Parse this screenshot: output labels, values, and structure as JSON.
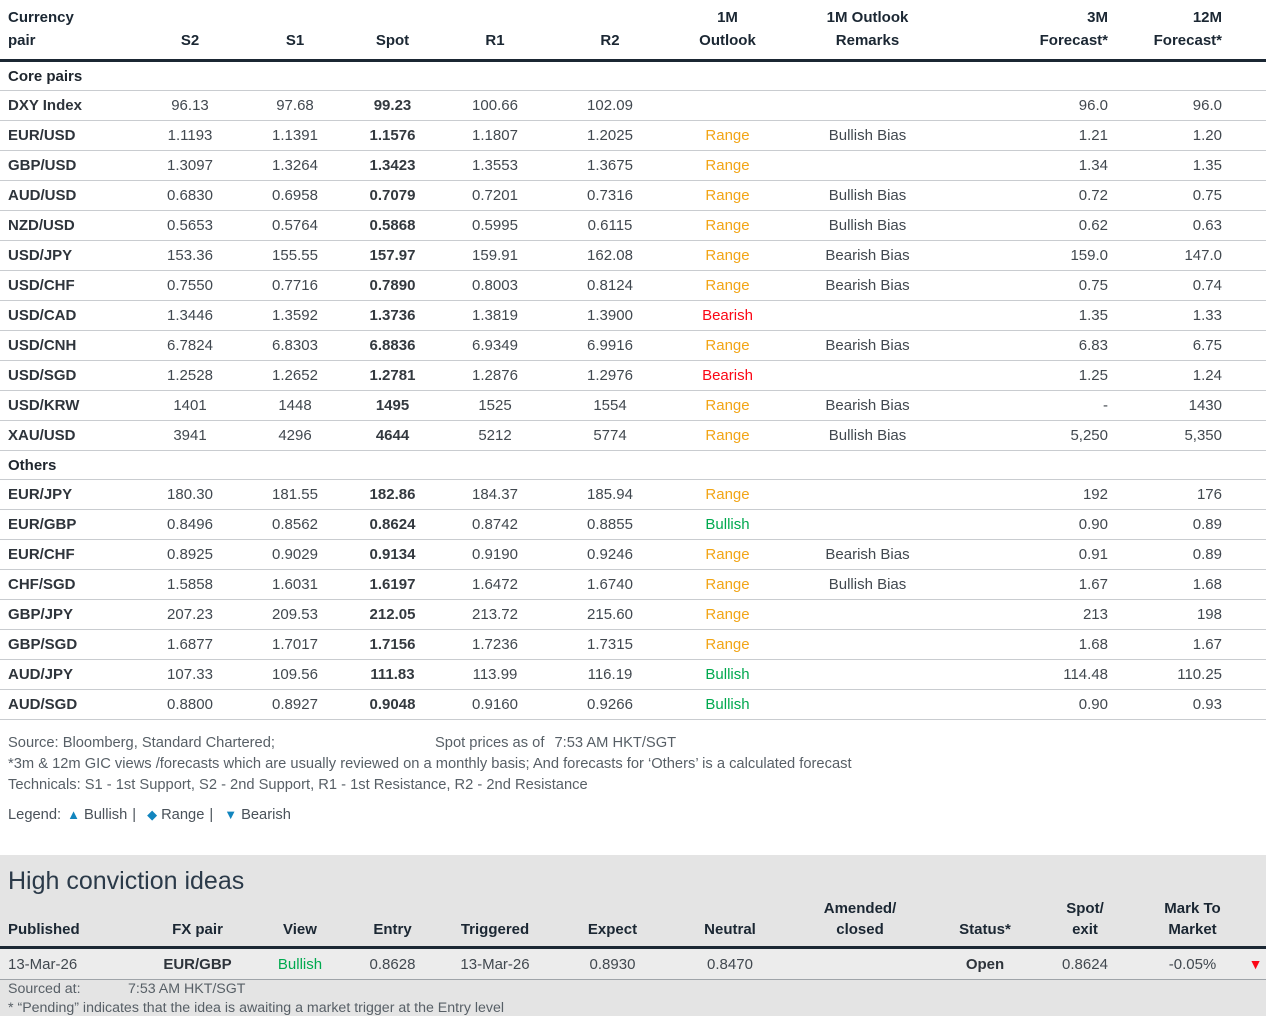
{
  "colors": {
    "range": "#f2a516",
    "bearish": "#fb0716",
    "bullish": "#00a94f",
    "legend_icon": "#1285be",
    "header_navy": "#1b2733"
  },
  "fx_table": {
    "columns": [
      {
        "key": "pair",
        "l1": "Currency",
        "l2": "pair"
      },
      {
        "key": "s2",
        "l1": "",
        "l2": "S2"
      },
      {
        "key": "s1",
        "l1": "",
        "l2": "S1"
      },
      {
        "key": "spot",
        "l1": "",
        "l2": "Spot"
      },
      {
        "key": "r1",
        "l1": "",
        "l2": "R1"
      },
      {
        "key": "r2",
        "l1": "",
        "l2": "R2"
      },
      {
        "key": "outlook",
        "l1": "1M",
        "l2": "Outlook"
      },
      {
        "key": "remarks",
        "l1": "1M Outlook",
        "l2": "Remarks"
      },
      {
        "key": "f3m",
        "l1": "3M",
        "l2": "Forecast*"
      },
      {
        "key": "f12m",
        "l1": "12M",
        "l2": "Forecast*"
      }
    ],
    "sections": [
      {
        "title": "Core pairs",
        "rows": [
          {
            "pair": "DXY Index",
            "s2": "96.13",
            "s1": "97.68",
            "spot": "99.23",
            "r1": "100.66",
            "r2": "102.09",
            "outlook": "",
            "remarks": "",
            "f3m": "96.0",
            "f12m": "96.0"
          },
          {
            "pair": "EUR/USD",
            "s2": "1.1193",
            "s1": "1.1391",
            "spot": "1.1576",
            "r1": "1.1807",
            "r2": "1.2025",
            "outlook": "Range",
            "remarks": "Bullish Bias",
            "f3m": "1.21",
            "f12m": "1.20"
          },
          {
            "pair": "GBP/USD",
            "s2": "1.3097",
            "s1": "1.3264",
            "spot": "1.3423",
            "r1": "1.3553",
            "r2": "1.3675",
            "outlook": "Range",
            "remarks": "",
            "f3m": "1.34",
            "f12m": "1.35"
          },
          {
            "pair": "AUD/USD",
            "s2": "0.6830",
            "s1": "0.6958",
            "spot": "0.7079",
            "r1": "0.7201",
            "r2": "0.7316",
            "outlook": "Range",
            "remarks": "Bullish Bias",
            "f3m": "0.72",
            "f12m": "0.75"
          },
          {
            "pair": "NZD/USD",
            "s2": "0.5653",
            "s1": "0.5764",
            "spot": "0.5868",
            "r1": "0.5995",
            "r2": "0.6115",
            "outlook": "Range",
            "remarks": "Bullish Bias",
            "f3m": "0.62",
            "f12m": "0.63"
          },
          {
            "pair": "USD/JPY",
            "s2": "153.36",
            "s1": "155.55",
            "spot": "157.97",
            "r1": "159.91",
            "r2": "162.08",
            "outlook": "Range",
            "remarks": "Bearish Bias",
            "f3m": "159.0",
            "f12m": "147.0"
          },
          {
            "pair": "USD/CHF",
            "s2": "0.7550",
            "s1": "0.7716",
            "spot": "0.7890",
            "r1": "0.8003",
            "r2": "0.8124",
            "outlook": "Range",
            "remarks": "Bearish Bias",
            "f3m": "0.75",
            "f12m": "0.74"
          },
          {
            "pair": "USD/CAD",
            "s2": "1.3446",
            "s1": "1.3592",
            "spot": "1.3736",
            "r1": "1.3819",
            "r2": "1.3900",
            "outlook": "Bearish",
            "remarks": "",
            "f3m": "1.35",
            "f12m": "1.33"
          },
          {
            "pair": "USD/CNH",
            "s2": "6.7824",
            "s1": "6.8303",
            "spot": "6.8836",
            "r1": "6.9349",
            "r2": "6.9916",
            "outlook": "Range",
            "remarks": "Bearish Bias",
            "f3m": "6.83",
            "f12m": "6.75"
          },
          {
            "pair": "USD/SGD",
            "s2": "1.2528",
            "s1": "1.2652",
            "spot": "1.2781",
            "r1": "1.2876",
            "r2": "1.2976",
            "outlook": "Bearish",
            "remarks": "",
            "f3m": "1.25",
            "f12m": "1.24"
          },
          {
            "pair": "USD/KRW",
            "s2": "1401",
            "s1": "1448",
            "spot": "1495",
            "r1": "1525",
            "r2": "1554",
            "outlook": "Range",
            "remarks": "Bearish Bias",
            "f3m": "-",
            "f12m": "1430"
          },
          {
            "pair": "XAU/USD",
            "s2": "3941",
            "s1": "4296",
            "spot": "4644",
            "r1": "5212",
            "r2": "5774",
            "outlook": "Range",
            "remarks": "Bullish Bias",
            "f3m": "5,250",
            "f12m": "5,350"
          }
        ]
      },
      {
        "title": "Others",
        "rows": [
          {
            "pair": "EUR/JPY",
            "s2": "180.30",
            "s1": "181.55",
            "spot": "182.86",
            "r1": "184.37",
            "r2": "185.94",
            "outlook": "Range",
            "remarks": "",
            "f3m": "192",
            "f12m": "176"
          },
          {
            "pair": "EUR/GBP",
            "s2": "0.8496",
            "s1": "0.8562",
            "spot": "0.8624",
            "r1": "0.8742",
            "r2": "0.8855",
            "outlook": "Bullish",
            "remarks": "",
            "f3m": "0.90",
            "f12m": "0.89"
          },
          {
            "pair": "EUR/CHF",
            "s2": "0.8925",
            "s1": "0.9029",
            "spot": "0.9134",
            "r1": "0.9190",
            "r2": "0.9246",
            "outlook": "Range",
            "remarks": "Bearish Bias",
            "f3m": "0.91",
            "f12m": "0.89"
          },
          {
            "pair": "CHF/SGD",
            "s2": "1.5858",
            "s1": "1.6031",
            "spot": "1.6197",
            "r1": "1.6472",
            "r2": "1.6740",
            "outlook": "Range",
            "remarks": "Bullish Bias",
            "f3m": "1.67",
            "f12m": "1.68"
          },
          {
            "pair": "GBP/JPY",
            "s2": "207.23",
            "s1": "209.53",
            "spot": "212.05",
            "r1": "213.72",
            "r2": "215.60",
            "outlook": "Range",
            "remarks": "",
            "f3m": "213",
            "f12m": "198"
          },
          {
            "pair": "GBP/SGD",
            "s2": "1.6877",
            "s1": "1.7017",
            "spot": "1.7156",
            "r1": "1.7236",
            "r2": "1.7315",
            "outlook": "Range",
            "remarks": "",
            "f3m": "1.68",
            "f12m": "1.67"
          },
          {
            "pair": "AUD/JPY",
            "s2": "107.33",
            "s1": "109.56",
            "spot": "111.83",
            "r1": "113.99",
            "r2": "116.19",
            "outlook": "Bullish",
            "remarks": "",
            "f3m": "114.48",
            "f12m": "110.25"
          },
          {
            "pair": "AUD/SGD",
            "s2": "0.8800",
            "s1": "0.8927",
            "spot": "0.9048",
            "r1": "0.9160",
            "r2": "0.9266",
            "outlook": "Bullish",
            "remarks": "",
            "f3m": "0.90",
            "f12m": "0.93"
          }
        ]
      }
    ]
  },
  "notes": {
    "source": "Source: Bloomberg, Standard Chartered;",
    "spot_asof_label": "Spot prices as of",
    "spot_asof_time": "7:53 AM HKT/SGT",
    "forecast_note": "*3m & 12m GIC views /forecasts which are usually reviewed on a monthly basis; And forecasts for ‘Others’ is a calculated forecast",
    "technicals_note": "Technicals: S1 - 1st Support, S2 - 2nd Support, R1 - 1st Resistance, R2 - 2nd Resistance",
    "legend_label": "Legend:",
    "legend_items": [
      {
        "icon": "▲",
        "label": "Bullish"
      },
      {
        "icon": "◆",
        "label": "Range"
      },
      {
        "icon": "▼",
        "label": "Bearish"
      }
    ]
  },
  "hci": {
    "title": "High conviction ideas",
    "columns": [
      {
        "key": "published",
        "l1": "",
        "l2": "Published"
      },
      {
        "key": "fxpair",
        "l1": "",
        "l2": "FX pair"
      },
      {
        "key": "view",
        "l1": "",
        "l2": "View"
      },
      {
        "key": "entry",
        "l1": "",
        "l2": "Entry"
      },
      {
        "key": "triggered",
        "l1": "",
        "l2": "Triggered"
      },
      {
        "key": "expect",
        "l1": "",
        "l2": "Expect"
      },
      {
        "key": "neutral",
        "l1": "",
        "l2": "Neutral"
      },
      {
        "key": "amended",
        "l1": "Amended/",
        "l2": "closed"
      },
      {
        "key": "status",
        "l1": "",
        "l2": "Status*"
      },
      {
        "key": "spotexit",
        "l1": "Spot/",
        "l2": "exit"
      },
      {
        "key": "mtm",
        "l1": "Mark To",
        "l2": "Market"
      },
      {
        "key": "arrow",
        "l1": "",
        "l2": ""
      }
    ],
    "row": {
      "published": "13-Mar-26",
      "fxpair": "EUR/GBP",
      "view": "Bullish",
      "entry": "0.8628",
      "triggered": "13-Mar-26",
      "expect": "0.8930",
      "neutral": "0.8470",
      "amended": "",
      "status": "Open",
      "spotexit": "0.8624",
      "mtm": "-0.05%",
      "arrow": "▼"
    },
    "sourced_label": "Sourced at:",
    "sourced_time": "7:53 AM HKT/SGT",
    "pending_note": "* “Pending” indicates that the idea is awaiting a market trigger at the Entry level"
  }
}
